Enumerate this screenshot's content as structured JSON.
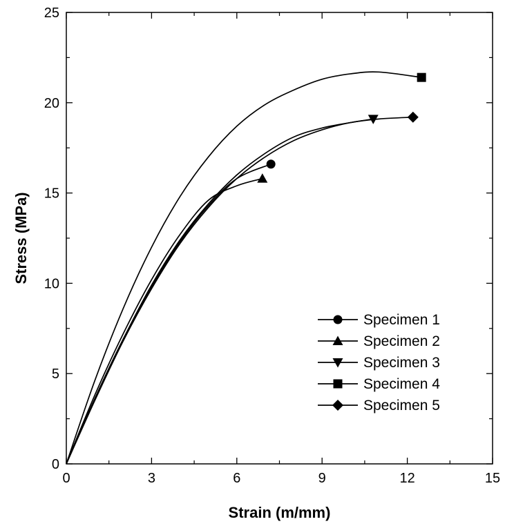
{
  "chart_data": {
    "type": "line",
    "title": "",
    "xlabel": "Strain (m/mm)",
    "ylabel": "Stress (MPa)",
    "xlim": [
      0,
      15
    ],
    "ylim": [
      0,
      25
    ],
    "xticks": [
      "0",
      "3",
      "6",
      "9",
      "12",
      "15"
    ],
    "yticks": [
      "0",
      "5",
      "10",
      "15",
      "20",
      "25"
    ],
    "grid": false,
    "legend": "bottom-right",
    "colors": {
      "line": "#000000",
      "axis": "#000000",
      "background": "#ffffff"
    },
    "series": [
      {
        "name": "Specimen 1",
        "marker": "circle",
        "x": [
          0,
          1,
          2,
          3,
          4,
          5,
          6,
          7.2
        ],
        "y": [
          0,
          3.6,
          6.9,
          9.8,
          12.3,
          14.3,
          15.8,
          16.6
        ]
      },
      {
        "name": "Specimen 2",
        "marker": "triangle-up",
        "x": [
          0,
          1,
          2,
          3,
          4,
          5,
          6,
          6.9
        ],
        "y": [
          0,
          3.8,
          7.2,
          10.2,
          12.7,
          14.6,
          15.4,
          15.8
        ]
      },
      {
        "name": "Specimen 3",
        "marker": "triangle-down",
        "x": [
          0,
          1,
          2,
          3,
          4,
          5,
          6,
          7,
          8,
          9,
          10,
          10.8
        ],
        "y": [
          0,
          3.6,
          6.9,
          9.9,
          12.4,
          14.4,
          16.0,
          17.2,
          18.1,
          18.6,
          18.9,
          19.1
        ]
      },
      {
        "name": "Specimen 4",
        "marker": "square",
        "x": [
          0,
          1,
          2,
          3,
          4,
          5,
          6,
          7,
          8,
          9,
          10,
          11,
          12.5
        ],
        "y": [
          0,
          4.6,
          8.6,
          12.0,
          14.8,
          17.0,
          18.7,
          19.9,
          20.7,
          21.3,
          21.6,
          21.7,
          21.4
        ]
      },
      {
        "name": "Specimen 5",
        "marker": "diamond",
        "x": [
          0,
          1,
          2,
          3,
          4,
          5,
          6,
          7,
          8,
          9,
          10,
          11,
          12.2
        ],
        "y": [
          0,
          3.5,
          6.8,
          9.7,
          12.2,
          14.2,
          15.8,
          17.0,
          17.9,
          18.5,
          18.9,
          19.1,
          19.2
        ]
      }
    ]
  }
}
